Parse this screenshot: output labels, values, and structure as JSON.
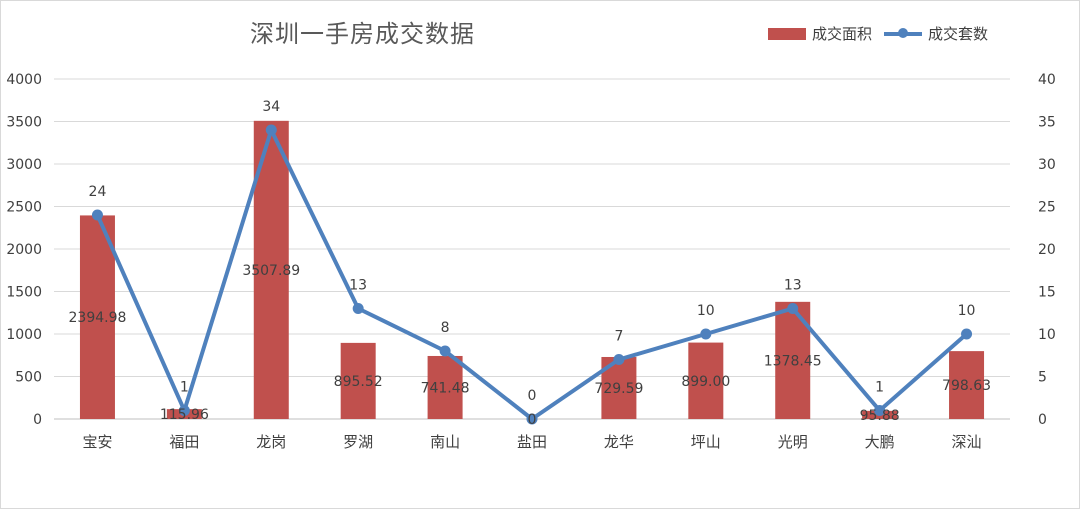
{
  "chart_data": {
    "type": "bar",
    "title": "深圳一手房成交数据",
    "categories": [
      "宝安",
      "福田",
      "龙岗",
      "罗湖",
      "南山",
      "盐田",
      "龙华",
      "坪山",
      "光明",
      "大鹏",
      "深汕"
    ],
    "series": [
      {
        "name": "成交面积",
        "type": "bar",
        "axis": "left",
        "color": "#c0504d",
        "values": [
          2394.98,
          115.96,
          3507.89,
          895.52,
          741.48,
          0,
          729.59,
          899.0,
          1378.45,
          95.88,
          798.63
        ],
        "labels": [
          "2394.98",
          "115.96",
          "3507.89",
          "895.52",
          "741.48",
          "0",
          "729.59",
          "899.00",
          "1378.45",
          "95.88",
          "798.63"
        ]
      },
      {
        "name": "成交套数",
        "type": "line",
        "axis": "right",
        "color": "#4f81bd",
        "values": [
          24,
          1,
          34,
          13,
          8,
          0,
          7,
          10,
          13,
          1,
          10
        ],
        "labels": [
          "24",
          "1",
          "34",
          "13",
          "8",
          "0",
          "7",
          "10",
          "13",
          "1",
          "10"
        ]
      }
    ],
    "ylim_left": [
      0,
      4000
    ],
    "yticks_left": [
      "0",
      "500",
      "1000",
      "1500",
      "2000",
      "2500",
      "3000",
      "3500",
      "4000"
    ],
    "ylim_right": [
      0,
      40
    ],
    "yticks_right": [
      "0",
      "5",
      "10",
      "15",
      "20",
      "25",
      "30",
      "35",
      "40"
    ],
    "grid": true,
    "legend_position": "top-right"
  }
}
